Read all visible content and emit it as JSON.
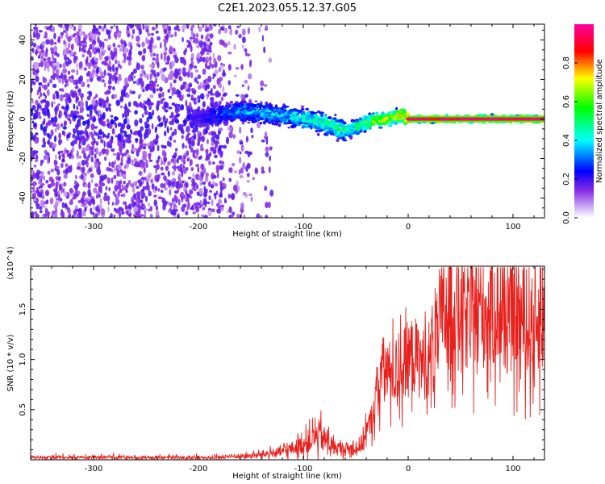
{
  "title": "C2E1.2023.055.12.37.G05",
  "chart_data": [
    {
      "type": "heatmap",
      "xlabel": "Height of straight line (km)",
      "ylabel": "Frequency (Hz)",
      "xlim": [
        -360,
        130
      ],
      "ylim": [
        -50,
        48
      ],
      "xticks": [
        -300,
        -200,
        -100,
        0,
        100
      ],
      "yticks": [
        -40,
        -20,
        0,
        20,
        40
      ],
      "colorbar": {
        "label": "Normalized spectral amplitude",
        "range": [
          0.0,
          1.0
        ],
        "ticks": [
          "0.0",
          "0.2",
          "0.4",
          "0.6",
          "0.8"
        ],
        "tick_values": [
          0.0,
          0.2,
          0.4,
          0.6,
          0.8
        ],
        "colormap": [
          "#ffffff",
          "#8a2be2",
          "#0000ff",
          "#00ffff",
          "#00ff00",
          "#ffff00",
          "#ff0000",
          "#ff00a0"
        ]
      },
      "ridge_x": [
        -200,
        -180,
        -160,
        -140,
        -120,
        -100,
        -80,
        -60,
        -45,
        -35,
        -20,
        -5,
        0,
        20,
        40,
        60,
        80,
        100,
        130
      ],
      "ridge_y": [
        0,
        2,
        4,
        3,
        2,
        0,
        -2,
        -6,
        -3,
        -1,
        0,
        2,
        0,
        0,
        0,
        0,
        0,
        0,
        0
      ],
      "ridge_amplitude": [
        0.2,
        0.3,
        0.35,
        0.4,
        0.4,
        0.45,
        0.5,
        0.5,
        0.55,
        0.65,
        0.75,
        0.8,
        0.9,
        0.95,
        0.95,
        0.95,
        0.95,
        0.95,
        0.95
      ],
      "grid": false,
      "grid_note": "noise scatter for x < -140 km, strong narrow line near 0 Hz for x > 0 km"
    },
    {
      "type": "line",
      "xlabel": "Height of straight line (km)",
      "ylabel": "SNR (10 * v/v)",
      "y_multiplier": "(x10^4)",
      "xlim": [
        -360,
        130
      ],
      "ylim": [
        0,
        1.93
      ],
      "xticks": [
        -300,
        -200,
        -100,
        0,
        100
      ],
      "yticks": [
        0.5,
        1.0,
        1.5
      ],
      "series": [
        {
          "color": "#e8201c",
          "x": [
            -360,
            -300,
            -250,
            -200,
            -180,
            -150,
            -120,
            -100,
            -85,
            -70,
            -55,
            -45,
            -35,
            -25,
            -15,
            -5,
            5,
            15,
            25,
            35,
            45,
            55,
            65,
            75,
            85,
            95,
            105,
            115,
            125,
            130
          ],
          "y": [
            0.02,
            0.02,
            0.02,
            0.02,
            0.03,
            0.04,
            0.08,
            0.15,
            0.25,
            0.12,
            0.1,
            0.15,
            0.4,
            0.9,
            0.85,
            0.95,
            1.05,
            0.95,
            1.1,
            1.5,
            1.55,
            1.4,
            1.5,
            1.45,
            1.5,
            1.35,
            1.45,
            1.3,
            1.4,
            1.35
          ]
        }
      ],
      "grid": false
    }
  ]
}
